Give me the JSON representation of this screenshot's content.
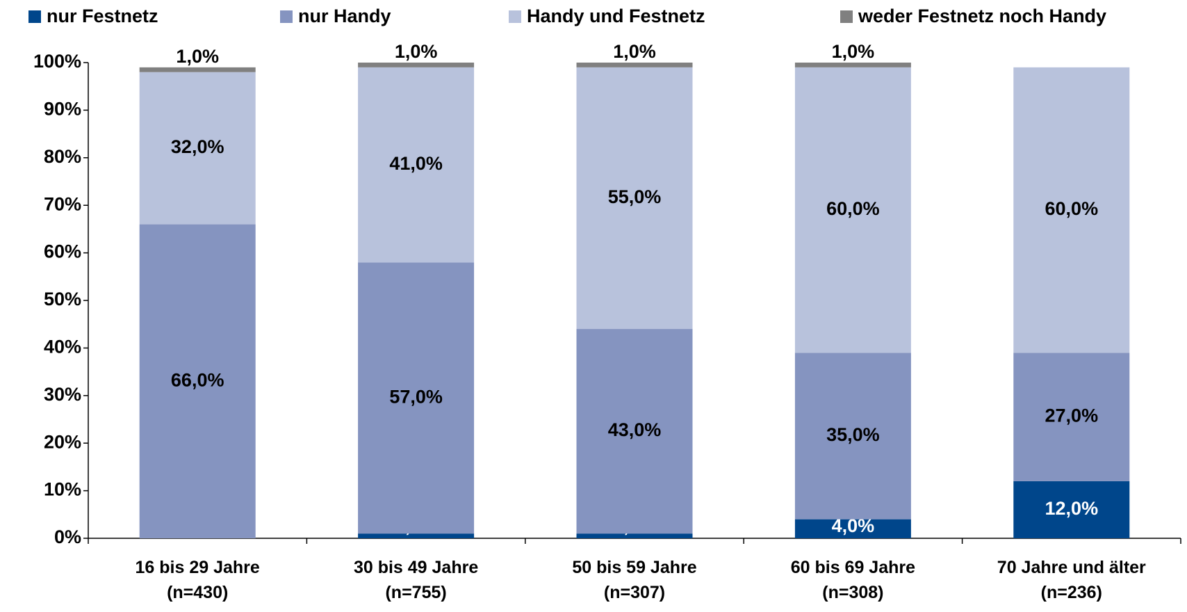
{
  "chart_data": {
    "type": "stacked_bar",
    "categories": [
      "16 bis 29 Jahre\n(n=430)",
      "30 bis 49 Jahre\n(n=755)",
      "50 bis 59 Jahre\n(n=307)",
      "60 bis 69 Jahre\n(n=308)",
      "70 Jahre und älter\n(n=236)"
    ],
    "series": [
      {
        "name": "nur Festnetz",
        "color": "#00468b",
        "values": [
          0,
          1,
          1,
          4,
          12
        ],
        "value_labels": [
          null,
          "1,0%",
          "1,0%",
          "4,0%",
          "12,0%"
        ]
      },
      {
        "name": "nur Handy",
        "color": "#8594c0",
        "values": [
          66,
          57,
          43,
          35,
          27
        ],
        "value_labels": [
          "66,0%",
          "57,0%",
          "43,0%",
          "35,0%",
          "27,0%"
        ]
      },
      {
        "name": "Handy und Festnetz",
        "color": "#b8c2dc",
        "values": [
          32,
          41,
          55,
          60,
          60
        ],
        "value_labels": [
          "32,0%",
          "41,0%",
          "55,0%",
          "60,0%",
          "60,0%"
        ]
      },
      {
        "name": "weder Festnetz noch Handy",
        "color": "#808080",
        "values": [
          1,
          1,
          1,
          1,
          0
        ],
        "value_labels": [
          "1,0%",
          "1,0%",
          "1,0%",
          "1,0%",
          null
        ]
      }
    ],
    "ylim": [
      0,
      100
    ],
    "yticks": [
      {
        "value": 0,
        "label": "0%"
      },
      {
        "value": 10,
        "label": "10%"
      },
      {
        "value": 20,
        "label": "20%"
      },
      {
        "value": 30,
        "label": "30%"
      },
      {
        "value": 40,
        "label": "40%"
      },
      {
        "value": 50,
        "label": "50%"
      },
      {
        "value": 60,
        "label": "60%"
      },
      {
        "value": 70,
        "label": "70%"
      },
      {
        "value": 80,
        "label": "80%"
      },
      {
        "value": 90,
        "label": "90%"
      },
      {
        "value": 100,
        "label": "100%"
      }
    ],
    "legend": "top"
  }
}
